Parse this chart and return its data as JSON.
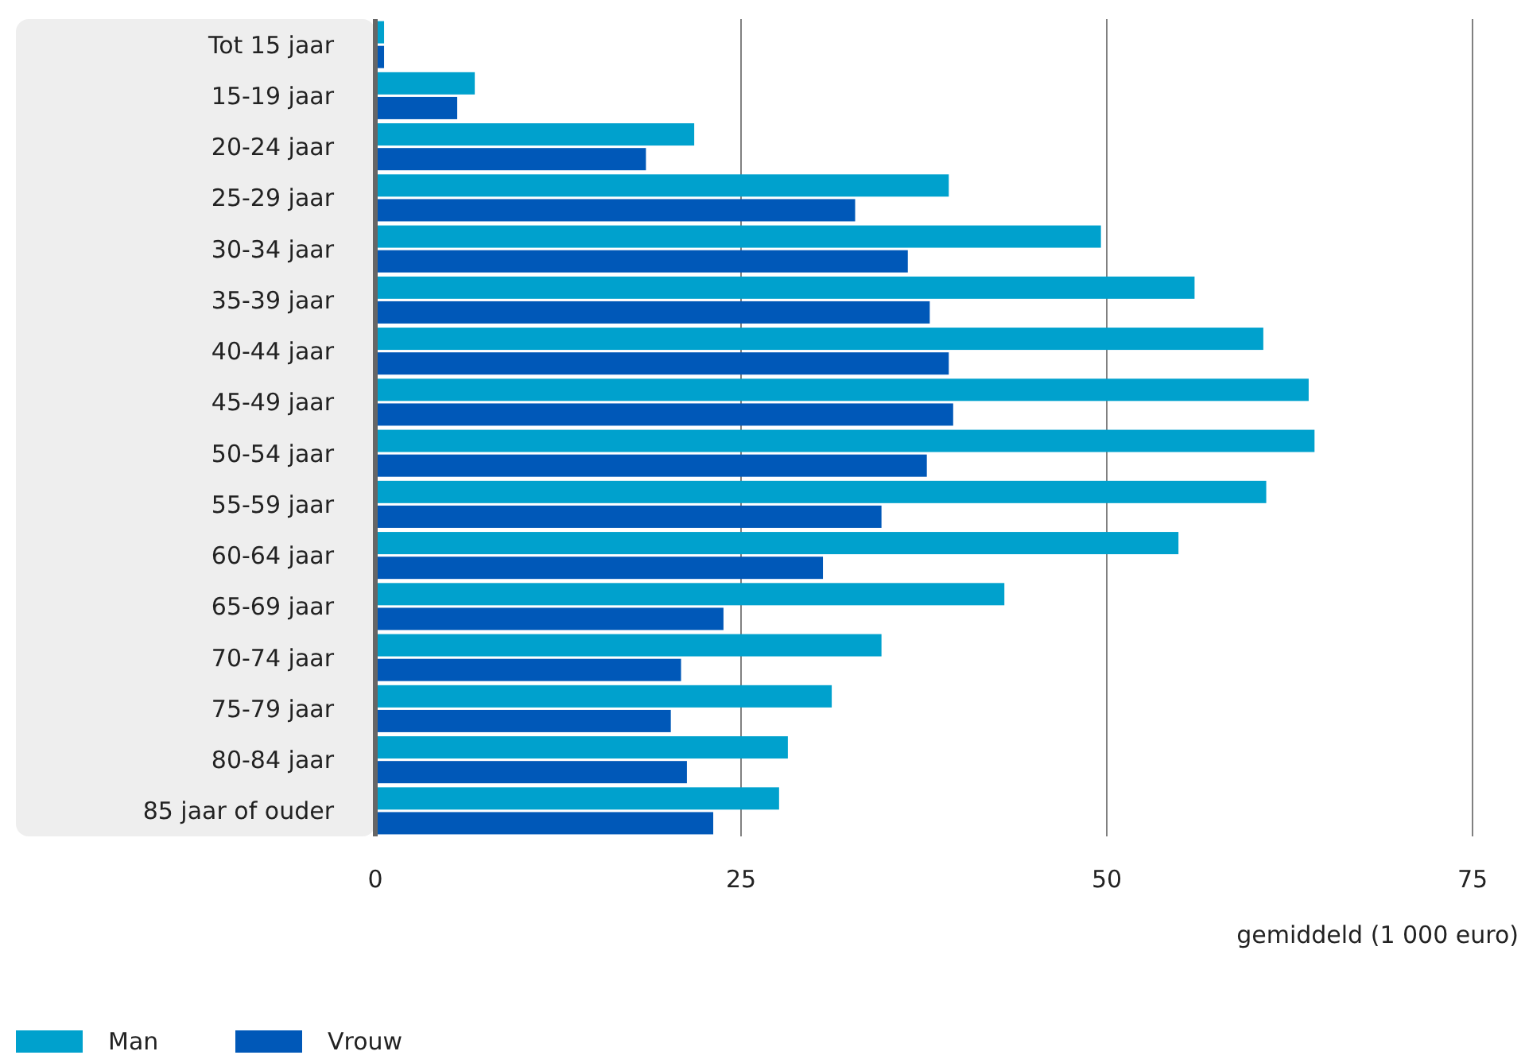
{
  "chart_data": {
    "type": "bar",
    "orientation": "horizontal",
    "categories": [
      "Tot 15 jaar",
      "15-19 jaar",
      "20-24 jaar",
      "25-29 jaar",
      "30-34 jaar",
      "35-39 jaar",
      "40-44 jaar",
      "45-49 jaar",
      "50-54 jaar",
      "55-59 jaar",
      "60-64 jaar",
      "65-69 jaar",
      "70-74 jaar",
      "75-79 jaar",
      "80-84 jaar",
      "85 jaar of ouder"
    ],
    "series": [
      {
        "name": "Man",
        "color": "#00a1cd",
        "values": [
          0.6,
          6.8,
          21.8,
          39.2,
          49.6,
          56.0,
          60.7,
          63.8,
          64.2,
          60.9,
          54.9,
          43.0,
          34.6,
          31.2,
          28.2,
          27.6
        ]
      },
      {
        "name": "Vrouw",
        "color": "#0058b8",
        "values": [
          0.6,
          5.6,
          18.5,
          32.8,
          36.4,
          37.9,
          39.2,
          39.5,
          37.7,
          34.6,
          30.6,
          23.8,
          20.9,
          20.2,
          21.3,
          23.1
        ]
      }
    ],
    "xlim": [
      0,
      75
    ],
    "xticks": [
      0,
      25,
      50,
      75
    ],
    "xlabel": "gemiddeld (1 000 euro)",
    "grid": "x",
    "legend": "bottom left"
  }
}
